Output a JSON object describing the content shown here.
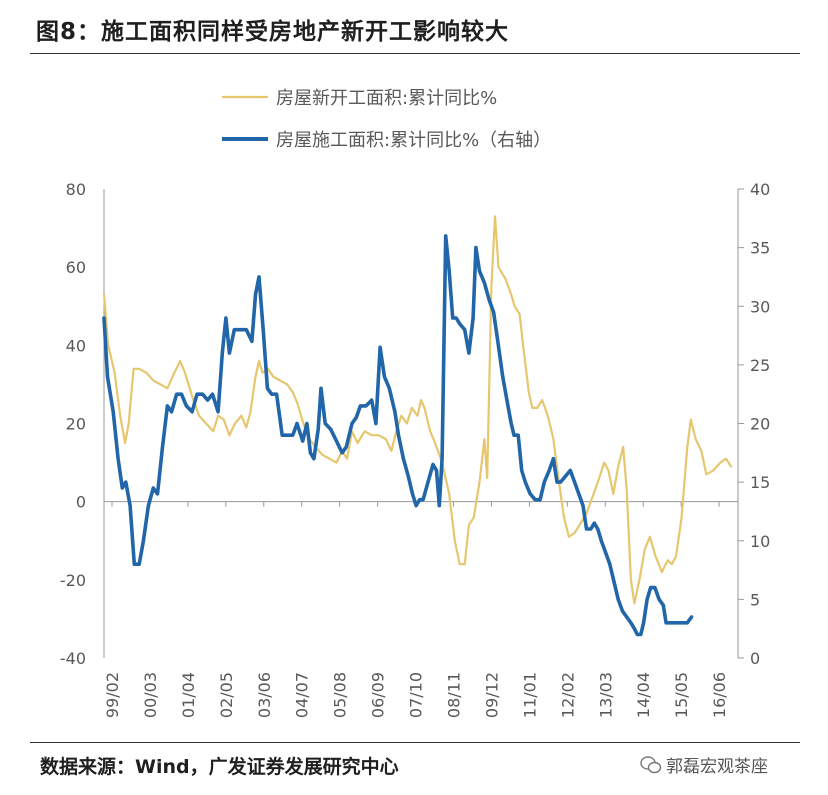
{
  "figure_title": "图8：施工面积同样受房地产新开工影响较大",
  "source_note": "数据来源：Wind，广发证券发展研究中心",
  "watermark": "郭磊宏观茶座",
  "chart_data": {
    "type": "line",
    "title": "",
    "xlabel": "",
    "ylabel_left": "",
    "ylabel_right": "",
    "ylim_left": [
      -40,
      80
    ],
    "ylim_right": [
      0,
      40
    ],
    "yticks_left": [
      "80",
      "60",
      "40",
      "20",
      "0",
      "-20",
      "-40"
    ],
    "yticks_right": [
      "40",
      "35",
      "30",
      "25",
      "20",
      "15",
      "10",
      "5",
      "0"
    ],
    "x_tick_labels": [
      "99/02",
      "00/03",
      "01/04",
      "02/05",
      "03/06",
      "04/07",
      "05/08",
      "06/09",
      "07/10",
      "08/11",
      "09/12",
      "11/01",
      "12/02",
      "13/03",
      "14/04",
      "15/05",
      "16/06"
    ],
    "legend_position": "top",
    "colors": {
      "new_start": "#e6c66e",
      "construction": "#2166a8",
      "axis": "#999999"
    },
    "series": [
      {
        "name": "房屋新开工面积:累计同比%",
        "axis": "left",
        "color": "#e6c66e",
        "points": [
          [
            0,
            53
          ],
          [
            0.6,
            40
          ],
          [
            1.5,
            33
          ],
          [
            2.3,
            22
          ],
          [
            3,
            15
          ],
          [
            3.5,
            20
          ],
          [
            4.2,
            34
          ],
          [
            5,
            34
          ],
          [
            6,
            33
          ],
          [
            7,
            31
          ],
          [
            8,
            30
          ],
          [
            9,
            29
          ],
          [
            10,
            33
          ],
          [
            10.8,
            36
          ],
          [
            11.5,
            33
          ],
          [
            12.5,
            27
          ],
          [
            13.5,
            22
          ],
          [
            14.5,
            20
          ],
          [
            15.5,
            18
          ],
          [
            16.2,
            22
          ],
          [
            17,
            21
          ],
          [
            17.8,
            17
          ],
          [
            18.6,
            20
          ],
          [
            19.5,
            22
          ],
          [
            20.2,
            19
          ],
          [
            20.8,
            23
          ],
          [
            21.5,
            32
          ],
          [
            22,
            36
          ],
          [
            22.5,
            33
          ],
          [
            23.3,
            34
          ],
          [
            24,
            32
          ],
          [
            25,
            31
          ],
          [
            26,
            30
          ],
          [
            26.8,
            28
          ],
          [
            27.5,
            25
          ],
          [
            28.3,
            20
          ],
          [
            29.2,
            16
          ],
          [
            30,
            14
          ],
          [
            31,
            12
          ],
          [
            32,
            11
          ],
          [
            33,
            10
          ],
          [
            33.8,
            13
          ],
          [
            34.5,
            11
          ],
          [
            35.2,
            18
          ],
          [
            36,
            15
          ],
          [
            37,
            18
          ],
          [
            38,
            17
          ],
          [
            39,
            17
          ],
          [
            40,
            16
          ],
          [
            40.8,
            13
          ],
          [
            41.5,
            18
          ],
          [
            42.2,
            22
          ],
          [
            43,
            20
          ],
          [
            43.7,
            24
          ],
          [
            44.5,
            22
          ],
          [
            45,
            26
          ],
          [
            45.5,
            24
          ],
          [
            46.3,
            18
          ],
          [
            47,
            15
          ],
          [
            48,
            10
          ],
          [
            49,
            2
          ],
          [
            49.8,
            -10
          ],
          [
            50.5,
            -16
          ],
          [
            51.2,
            -16
          ],
          [
            51.8,
            -6
          ],
          [
            52.5,
            -4
          ],
          [
            53.3,
            5
          ],
          [
            54,
            16
          ],
          [
            54.4,
            6
          ],
          [
            55,
            55
          ],
          [
            55.5,
            73
          ],
          [
            56,
            60
          ],
          [
            57,
            57
          ],
          [
            57.8,
            53
          ],
          [
            58.3,
            50
          ],
          [
            59,
            48
          ],
          [
            59.5,
            40
          ],
          [
            60.3,
            28
          ],
          [
            60.8,
            24
          ],
          [
            61.5,
            24
          ],
          [
            62.2,
            26
          ],
          [
            63,
            22
          ],
          [
            63.8,
            16
          ],
          [
            64.5,
            6
          ],
          [
            65.3,
            -4
          ],
          [
            66,
            -9
          ],
          [
            66.8,
            -8
          ],
          [
            67.5,
            -6
          ],
          [
            68.5,
            -3
          ],
          [
            69.5,
            2
          ],
          [
            70.3,
            6
          ],
          [
            71,
            10
          ],
          [
            71.6,
            8
          ],
          [
            72.3,
            2
          ],
          [
            73,
            9
          ],
          [
            73.7,
            14
          ],
          [
            74.2,
            3
          ],
          [
            74.8,
            -20
          ],
          [
            75.3,
            -26
          ],
          [
            76,
            -20
          ],
          [
            76.8,
            -12
          ],
          [
            77.5,
            -9
          ],
          [
            78.3,
            -14
          ],
          [
            79.2,
            -18
          ],
          [
            80,
            -15
          ],
          [
            80.6,
            -16
          ],
          [
            81.2,
            -14
          ],
          [
            82,
            -4
          ],
          [
            82.8,
            14
          ],
          [
            83.3,
            21
          ],
          [
            84,
            16
          ],
          [
            84.8,
            13
          ],
          [
            85.5,
            7
          ],
          [
            86.5,
            8
          ],
          [
            87.5,
            10
          ],
          [
            88.3,
            11
          ],
          [
            89,
            9
          ]
        ]
      },
      {
        "name": "房屋施工面积:累计同比%（右轴）",
        "axis": "right",
        "color": "#2166a8",
        "points": [
          [
            0,
            29
          ],
          [
            0.5,
            24
          ],
          [
            1.3,
            21
          ],
          [
            2,
            17
          ],
          [
            2.6,
            14.5
          ],
          [
            3.1,
            15
          ],
          [
            3.7,
            13
          ],
          [
            4.3,
            8
          ],
          [
            5,
            8
          ],
          [
            5.6,
            10
          ],
          [
            6.3,
            13
          ],
          [
            7,
            14.5
          ],
          [
            7.6,
            14
          ],
          [
            8.3,
            18
          ],
          [
            9,
            21.5
          ],
          [
            9.6,
            21
          ],
          [
            10.3,
            22.5
          ],
          [
            11,
            22.5
          ],
          [
            11.7,
            21.5
          ],
          [
            12.5,
            21
          ],
          [
            13.2,
            22.5
          ],
          [
            14,
            22.5
          ],
          [
            14.7,
            22
          ],
          [
            15.4,
            22.5
          ],
          [
            16.2,
            21
          ],
          [
            16.8,
            26
          ],
          [
            17.3,
            29
          ],
          [
            17.8,
            26
          ],
          [
            18.5,
            28
          ],
          [
            19.3,
            28
          ],
          [
            20.2,
            28
          ],
          [
            21,
            27
          ],
          [
            21.5,
            31
          ],
          [
            22,
            32.5
          ],
          [
            22.6,
            28
          ],
          [
            23.2,
            23
          ],
          [
            23.8,
            22.5
          ],
          [
            24.5,
            22.5
          ],
          [
            25.3,
            19
          ],
          [
            26,
            19
          ],
          [
            26.8,
            19
          ],
          [
            27.4,
            20
          ],
          [
            28.2,
            18.5
          ],
          [
            28.8,
            20
          ],
          [
            29.3,
            17.5
          ],
          [
            29.8,
            17
          ],
          [
            30.4,
            19.5
          ],
          [
            30.8,
            23
          ],
          [
            31.4,
            20
          ],
          [
            32.2,
            19.5
          ],
          [
            33,
            18.5
          ],
          [
            33.8,
            17.5
          ],
          [
            34.4,
            18
          ],
          [
            35.2,
            20
          ],
          [
            35.8,
            20.5
          ],
          [
            36.4,
            21.5
          ],
          [
            37.2,
            21.5
          ],
          [
            38,
            22
          ],
          [
            38.6,
            20
          ],
          [
            39.2,
            26.5
          ],
          [
            39.8,
            24
          ],
          [
            40.5,
            23
          ],
          [
            41.3,
            21
          ],
          [
            41.8,
            19
          ],
          [
            42.5,
            17
          ],
          [
            43.2,
            15.5
          ],
          [
            43.8,
            14
          ],
          [
            44.3,
            13
          ],
          [
            44.8,
            13.5
          ],
          [
            45.3,
            13.5
          ],
          [
            46,
            15
          ],
          [
            46.7,
            16.5
          ],
          [
            47.2,
            16
          ],
          [
            47.6,
            13
          ],
          [
            48,
            17
          ],
          [
            48.5,
            36
          ],
          [
            49,
            33
          ],
          [
            49.5,
            29
          ],
          [
            50,
            29
          ],
          [
            50.5,
            28.5
          ],
          [
            51.2,
            28
          ],
          [
            51.8,
            26
          ],
          [
            52.4,
            29
          ],
          [
            52.8,
            35
          ],
          [
            53.3,
            33
          ],
          [
            54,
            32
          ],
          [
            54.7,
            30.5
          ],
          [
            55.3,
            29.5
          ],
          [
            55.9,
            27
          ],
          [
            56.6,
            24
          ],
          [
            57.2,
            22
          ],
          [
            57.8,
            20
          ],
          [
            58.2,
            19
          ],
          [
            58.8,
            19
          ],
          [
            59.3,
            16
          ],
          [
            59.8,
            15
          ],
          [
            60.5,
            14
          ],
          [
            61.2,
            13.5
          ],
          [
            61.9,
            13.5
          ],
          [
            62.5,
            15
          ],
          [
            63.2,
            16
          ],
          [
            63.8,
            17
          ],
          [
            64.3,
            15
          ],
          [
            64.8,
            15
          ],
          [
            65.5,
            15.5
          ],
          [
            66.2,
            16
          ],
          [
            66.8,
            15
          ],
          [
            67.4,
            14
          ],
          [
            68,
            13
          ],
          [
            68.5,
            11
          ],
          [
            69.1,
            11
          ],
          [
            69.6,
            11.5
          ],
          [
            70.1,
            11
          ],
          [
            70.6,
            10
          ],
          [
            71.2,
            9
          ],
          [
            71.8,
            8
          ],
          [
            72.4,
            6.5
          ],
          [
            73,
            5
          ],
          [
            73.6,
            4
          ],
          [
            74.2,
            3.5
          ],
          [
            74.8,
            3
          ],
          [
            75.3,
            2.5
          ],
          [
            75.7,
            2
          ],
          [
            76.2,
            2
          ],
          [
            76.6,
            3
          ],
          [
            77.1,
            5
          ],
          [
            77.6,
            6
          ],
          [
            78.2,
            6
          ],
          [
            78.8,
            5
          ],
          [
            79.4,
            4.5
          ],
          [
            79.8,
            3
          ],
          [
            80.4,
            3
          ],
          [
            81,
            3
          ],
          [
            81.6,
            3
          ],
          [
            82.2,
            3
          ],
          [
            82.8,
            3
          ],
          [
            83.4,
            3.5
          ]
        ]
      }
    ]
  }
}
